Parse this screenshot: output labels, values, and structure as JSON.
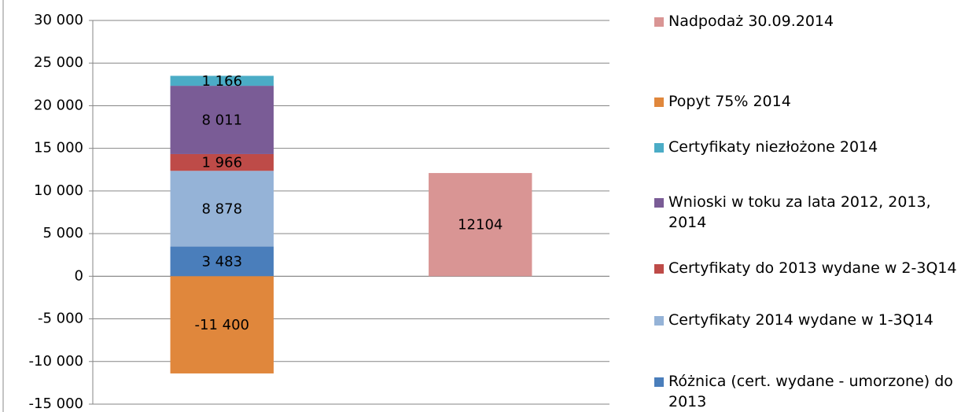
{
  "chart_data": {
    "type": "stacked_bar",
    "categories": [
      null,
      null
    ],
    "series": [
      {
        "name": "Różnica (cert. wydane - umorzone) do 2013",
        "color": "#4a7ebb",
        "values": [
          3483,
          null
        ],
        "value_labels": [
          "3 483",
          null
        ]
      },
      {
        "name": "Certyfikaty 2014 wydane w 1-3Q14",
        "color": "#95b3d7",
        "values": [
          8878,
          null
        ],
        "value_labels": [
          "8 878",
          null
        ]
      },
      {
        "name": "Certyfikaty do 2013 wydane w 2-3Q14",
        "color": "#be4b48",
        "values": [
          1966,
          null
        ],
        "value_labels": [
          "1 966",
          null
        ]
      },
      {
        "name": "Wnioski w toku za lata 2012, 2013, 2014",
        "color": "#7a5c96",
        "values": [
          8011,
          null
        ],
        "value_labels": [
          "8 011",
          null
        ]
      },
      {
        "name": "Certyfikaty niezłożone 2014",
        "color": "#4bacc6",
        "values": [
          1166,
          null
        ],
        "value_labels": [
          "1 166",
          null
        ]
      },
      {
        "name": "Popyt 75% 2014",
        "color": "#e0873c",
        "values": [
          -11400,
          null
        ],
        "value_labels": [
          "-11 400",
          null
        ]
      },
      {
        "name": "Nadpodaż 30.09.2014",
        "color": "#d99594",
        "values": [
          null,
          12104
        ]
      }
    ],
    "ylim": [
      -15000,
      30000
    ],
    "yticks": [
      {
        "value": -15000,
        "label": "-15 000"
      },
      {
        "value": -10000,
        "label": "-10 000"
      },
      {
        "value": -5000,
        "label": "-5 000"
      },
      0,
      {
        "value": 5000,
        "label": "5 000"
      },
      {
        "value": 10000,
        "label": "10 000"
      },
      {
        "value": 15000,
        "label": "15 000"
      },
      {
        "value": 20000,
        "label": "20 000"
      },
      {
        "value": 25000,
        "label": "25 000"
      },
      {
        "value": 30000,
        "label": "30 000"
      }
    ],
    "grid": true,
    "legend": "right"
  }
}
